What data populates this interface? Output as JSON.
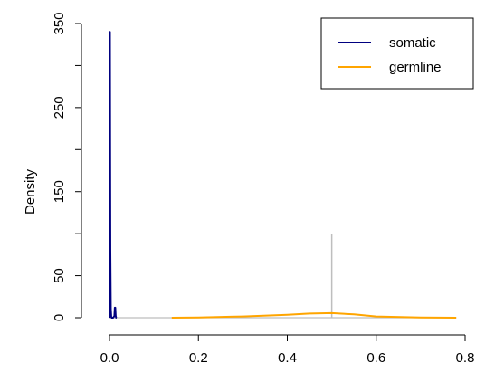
{
  "chart_data": {
    "type": "line",
    "title": "",
    "xlabel": "",
    "ylabel": "Density",
    "xlim": [
      0.0,
      0.8
    ],
    "ylim": [
      0,
      350
    ],
    "x_ticks": [
      0.0,
      0.2,
      0.4,
      0.6,
      0.8
    ],
    "x_tick_labels": [
      "0.0",
      "0.2",
      "0.4",
      "0.6",
      "0.8"
    ],
    "y_ticks": [
      0,
      50,
      150,
      250,
      350
    ],
    "y_tick_labels": [
      "0",
      "50",
      "150",
      "250",
      "350"
    ],
    "grid": false,
    "legend_position": "top-right",
    "series": [
      {
        "name": "somatic",
        "color": "#000080",
        "x": [
          0.0,
          0.0005,
          0.001,
          0.0015,
          0.002,
          0.003,
          0.004,
          0.005,
          0.008,
          0.011,
          0.012,
          0.013,
          0.014,
          0.015,
          0.016
        ],
        "y": [
          0,
          200,
          340,
          200,
          80,
          10,
          1,
          0,
          0,
          2,
          12,
          12,
          2,
          0,
          0
        ]
      },
      {
        "name": "germline",
        "color": "#FFA500",
        "x": [
          0.14,
          0.2,
          0.3,
          0.4,
          0.45,
          0.5,
          0.55,
          0.6,
          0.7,
          0.78
        ],
        "y": [
          0,
          0.3,
          1.5,
          3.5,
          5,
          5.5,
          4,
          1.5,
          0.3,
          0
        ]
      }
    ],
    "reference_lines": [
      {
        "orientation": "horizontal",
        "y": 0,
        "x_from": 0.0,
        "x_to": 0.78,
        "color": "#BEBEBE"
      },
      {
        "orientation": "vertical",
        "x": 0.5,
        "y_from": 0,
        "y_to": 100,
        "color": "#BEBEBE"
      }
    ]
  }
}
